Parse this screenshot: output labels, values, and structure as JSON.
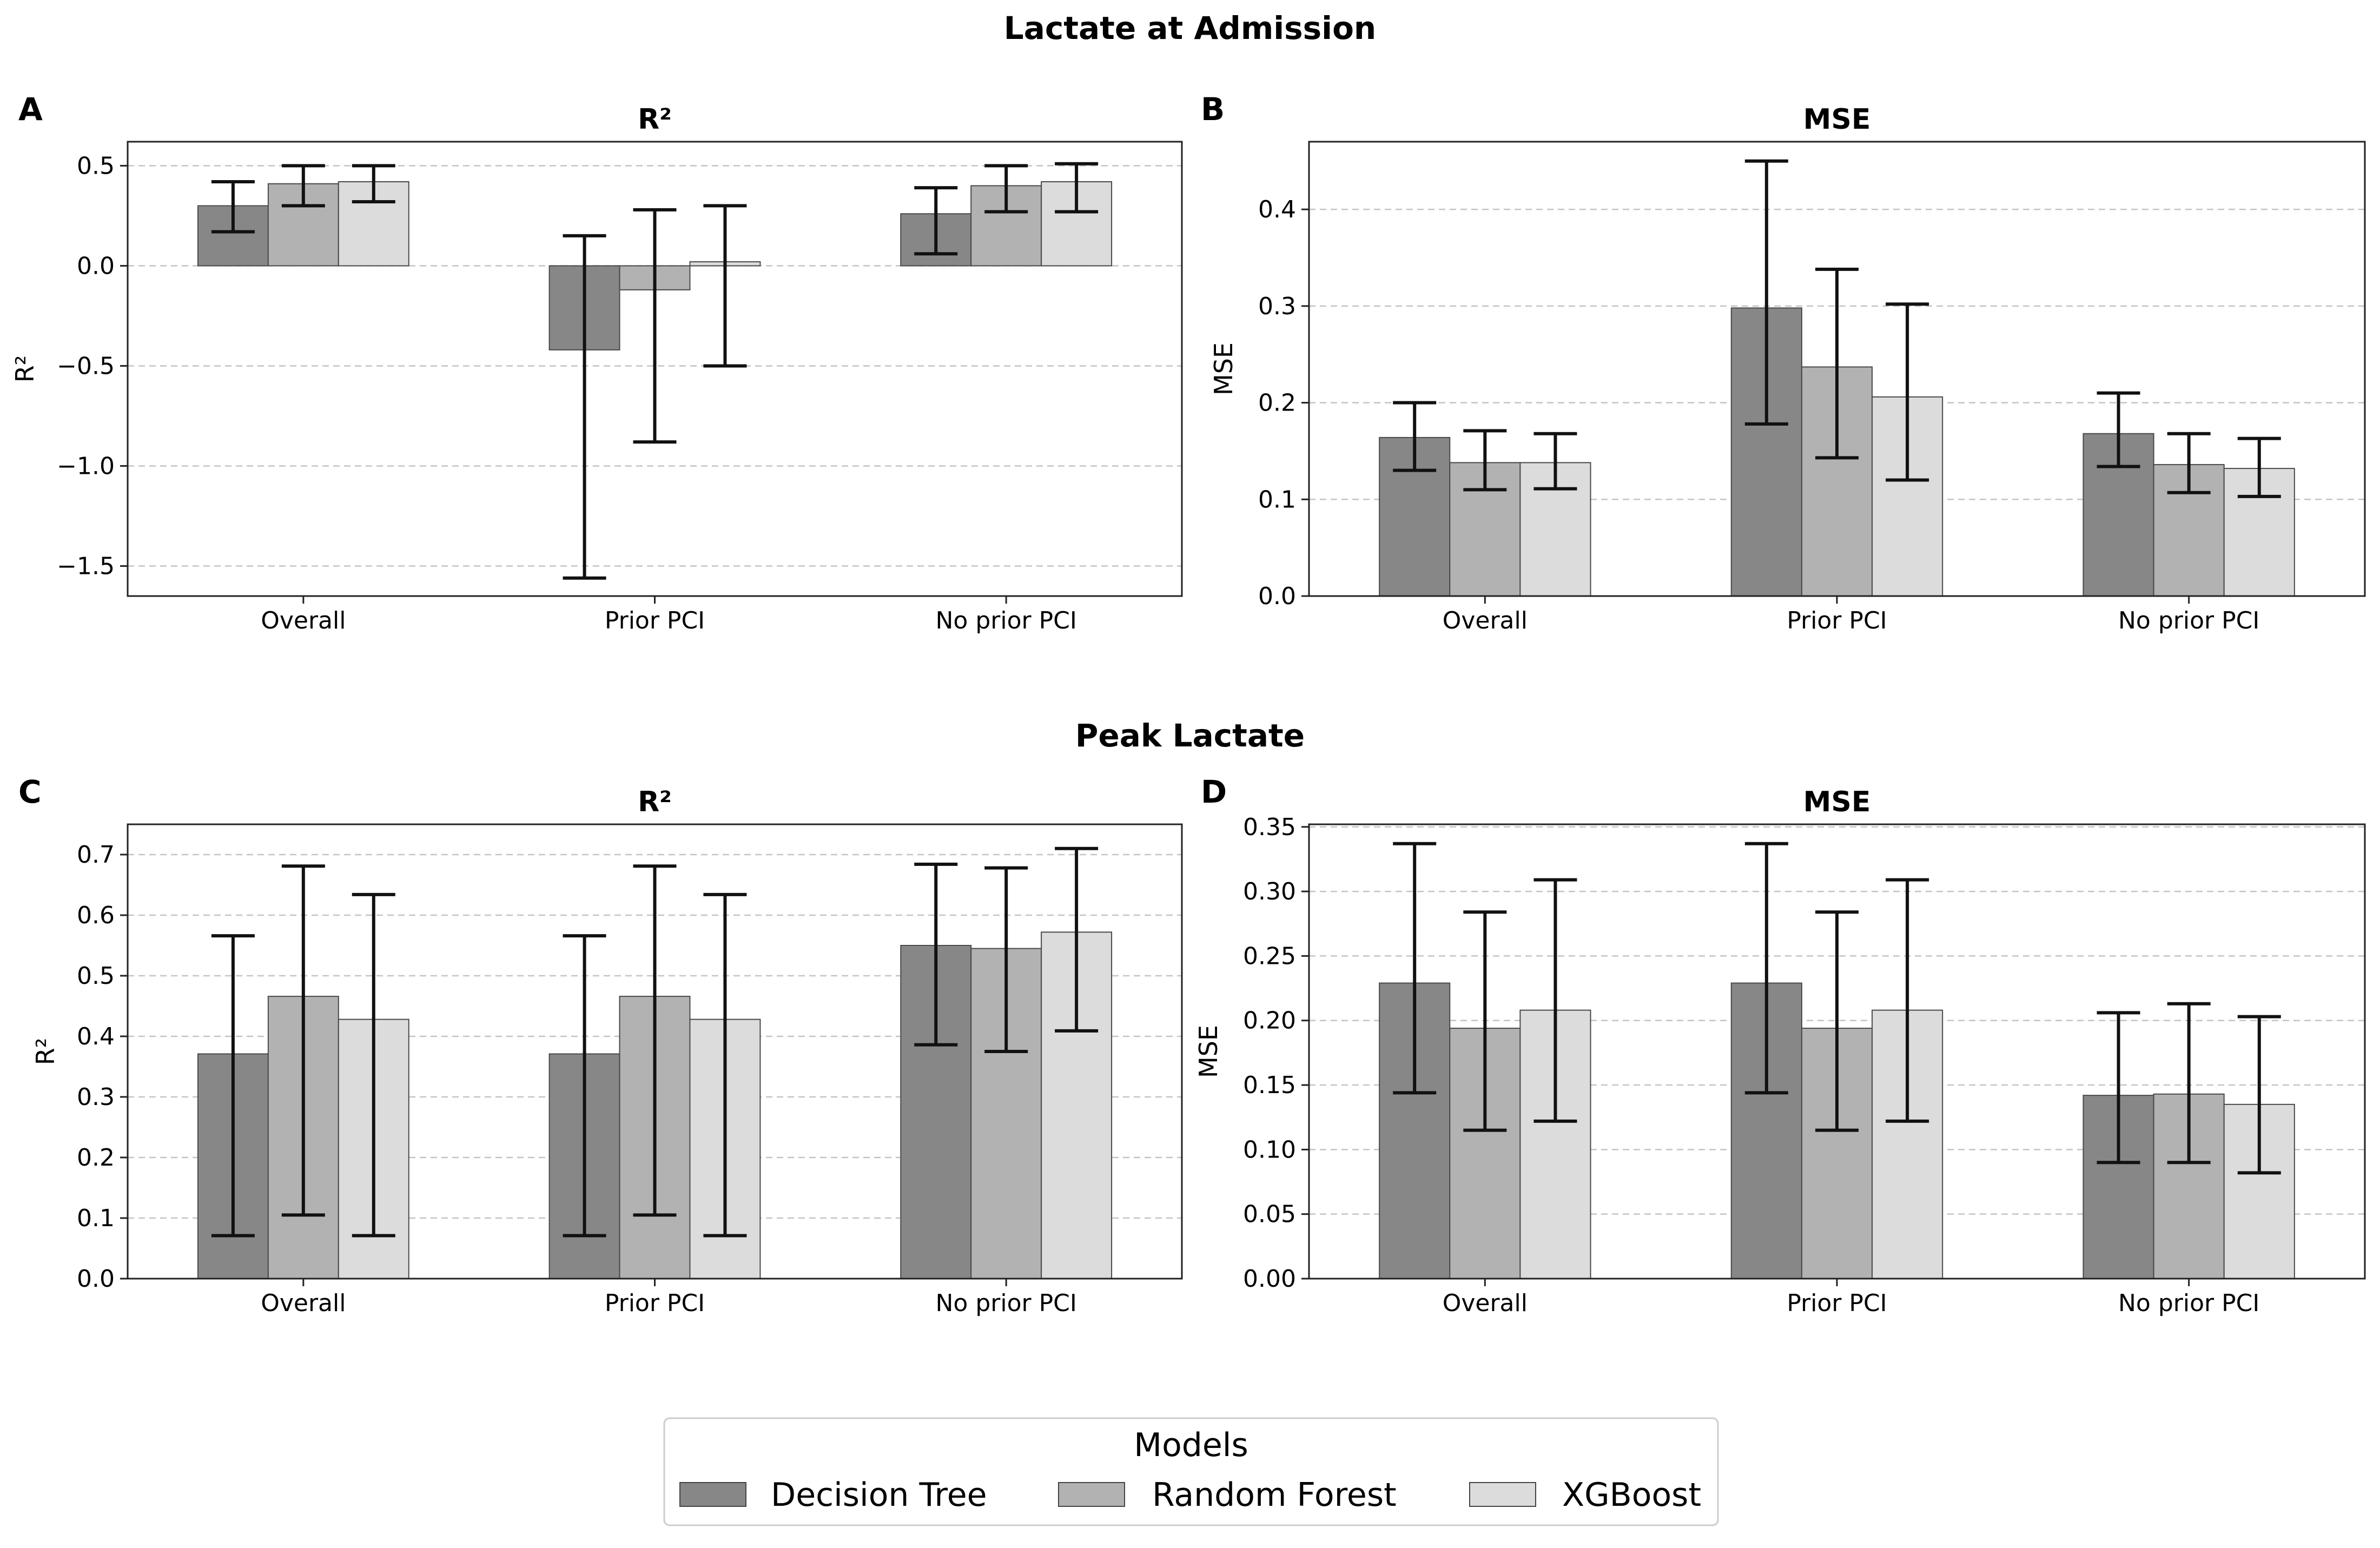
{
  "section_titles": {
    "top": "Lactate at Admission",
    "bottom": "Peak Lactate"
  },
  "legend": {
    "title": "Models",
    "items": [
      {
        "label": "Decision Tree",
        "color": "#878787"
      },
      {
        "label": "Random Forest",
        "color": "#b2b2b2"
      },
      {
        "label": "XGBoost",
        "color": "#dcdcdc"
      }
    ]
  },
  "chart_data": [
    {
      "panel": "A",
      "type": "bar",
      "title": "R²",
      "xlabel": "",
      "ylabel": "R²",
      "categories": [
        "Overall",
        "Prior PCI",
        "No prior PCI"
      ],
      "ylim": [
        -1.65,
        0.62
      ],
      "yticks": [
        0.5,
        0.0,
        -0.5,
        -1.0,
        -1.5
      ],
      "ytick_labels": [
        "0.5",
        "0.0",
        "−0.5",
        "−1.0",
        "−1.5"
      ],
      "grid": true,
      "series": [
        {
          "name": "Decision Tree",
          "values": [
            0.3,
            -0.42,
            0.26
          ],
          "err_low": [
            0.17,
            -1.56,
            0.06
          ],
          "err_high": [
            0.42,
            0.15,
            0.39
          ]
        },
        {
          "name": "Random Forest",
          "values": [
            0.41,
            -0.12,
            0.4
          ],
          "err_low": [
            0.3,
            -0.88,
            0.27
          ],
          "err_high": [
            0.5,
            0.28,
            0.5
          ]
        },
        {
          "name": "XGBoost",
          "values": [
            0.42,
            0.02,
            0.42
          ],
          "err_low": [
            0.32,
            -0.5,
            0.27
          ],
          "err_high": [
            0.5,
            0.3,
            0.51
          ]
        }
      ]
    },
    {
      "panel": "B",
      "type": "bar",
      "title": "MSE",
      "xlabel": "",
      "ylabel": "MSE",
      "categories": [
        "Overall",
        "Prior PCI",
        "No prior PCI"
      ],
      "ylim": [
        0,
        0.47
      ],
      "yticks": [
        0.0,
        0.1,
        0.2,
        0.3,
        0.4
      ],
      "ytick_labels": [
        "0.0",
        "0.1",
        "0.2",
        "0.3",
        "0.4"
      ],
      "grid": true,
      "series": [
        {
          "name": "Decision Tree",
          "values": [
            0.164,
            0.298,
            0.168
          ],
          "err_low": [
            0.13,
            0.178,
            0.134
          ],
          "err_high": [
            0.2,
            0.45,
            0.21
          ]
        },
        {
          "name": "Random Forest",
          "values": [
            0.138,
            0.237,
            0.136
          ],
          "err_low": [
            0.11,
            0.143,
            0.107
          ],
          "err_high": [
            0.171,
            0.338,
            0.168
          ]
        },
        {
          "name": "XGBoost",
          "values": [
            0.138,
            0.206,
            0.132
          ],
          "err_low": [
            0.111,
            0.12,
            0.103
          ],
          "err_high": [
            0.168,
            0.302,
            0.163
          ]
        }
      ]
    },
    {
      "panel": "C",
      "type": "bar",
      "title": "R²",
      "xlabel": "",
      "ylabel": "R²",
      "categories": [
        "Overall",
        "Prior PCI",
        "No prior PCI"
      ],
      "ylim": [
        0,
        0.75
      ],
      "yticks": [
        0.0,
        0.1,
        0.2,
        0.3,
        0.4,
        0.5,
        0.6,
        0.7
      ],
      "ytick_labels": [
        "0.0",
        "0.1",
        "0.2",
        "0.3",
        "0.4",
        "0.5",
        "0.6",
        "0.7"
      ],
      "grid": true,
      "series": [
        {
          "name": "Decision Tree",
          "values": [
            0.371,
            0.371,
            0.55
          ],
          "err_low": [
            0.071,
            0.071,
            0.386
          ],
          "err_high": [
            0.566,
            0.566,
            0.684
          ]
        },
        {
          "name": "Random Forest",
          "values": [
            0.466,
            0.466,
            0.545
          ],
          "err_low": [
            0.105,
            0.105,
            0.375
          ],
          "err_high": [
            0.681,
            0.681,
            0.678
          ]
        },
        {
          "name": "XGBoost",
          "values": [
            0.428,
            0.428,
            0.572
          ],
          "err_low": [
            0.071,
            0.071,
            0.409
          ],
          "err_high": [
            0.634,
            0.634,
            0.71
          ]
        }
      ]
    },
    {
      "panel": "D",
      "type": "bar",
      "title": "MSE",
      "xlabel": "",
      "ylabel": "MSE",
      "categories": [
        "Overall",
        "Prior PCI",
        "No prior PCI"
      ],
      "ylim": [
        0,
        0.352
      ],
      "yticks": [
        0.0,
        0.05,
        0.1,
        0.15,
        0.2,
        0.25,
        0.3,
        0.35
      ],
      "ytick_labels": [
        "0.00",
        "0.05",
        "0.10",
        "0.15",
        "0.20",
        "0.25",
        "0.30",
        "0.35"
      ],
      "grid": true,
      "series": [
        {
          "name": "Decision Tree",
          "values": [
            0.229,
            0.229,
            0.142
          ],
          "err_low": [
            0.144,
            0.144,
            0.09
          ],
          "err_high": [
            0.337,
            0.337,
            0.206
          ]
        },
        {
          "name": "Random Forest",
          "values": [
            0.194,
            0.194,
            0.143
          ],
          "err_low": [
            0.115,
            0.115,
            0.09
          ],
          "err_high": [
            0.284,
            0.284,
            0.213
          ]
        },
        {
          "name": "XGBoost",
          "values": [
            0.208,
            0.208,
            0.135
          ],
          "err_low": [
            0.122,
            0.122,
            0.082
          ],
          "err_high": [
            0.309,
            0.309,
            0.203
          ]
        }
      ]
    }
  ]
}
